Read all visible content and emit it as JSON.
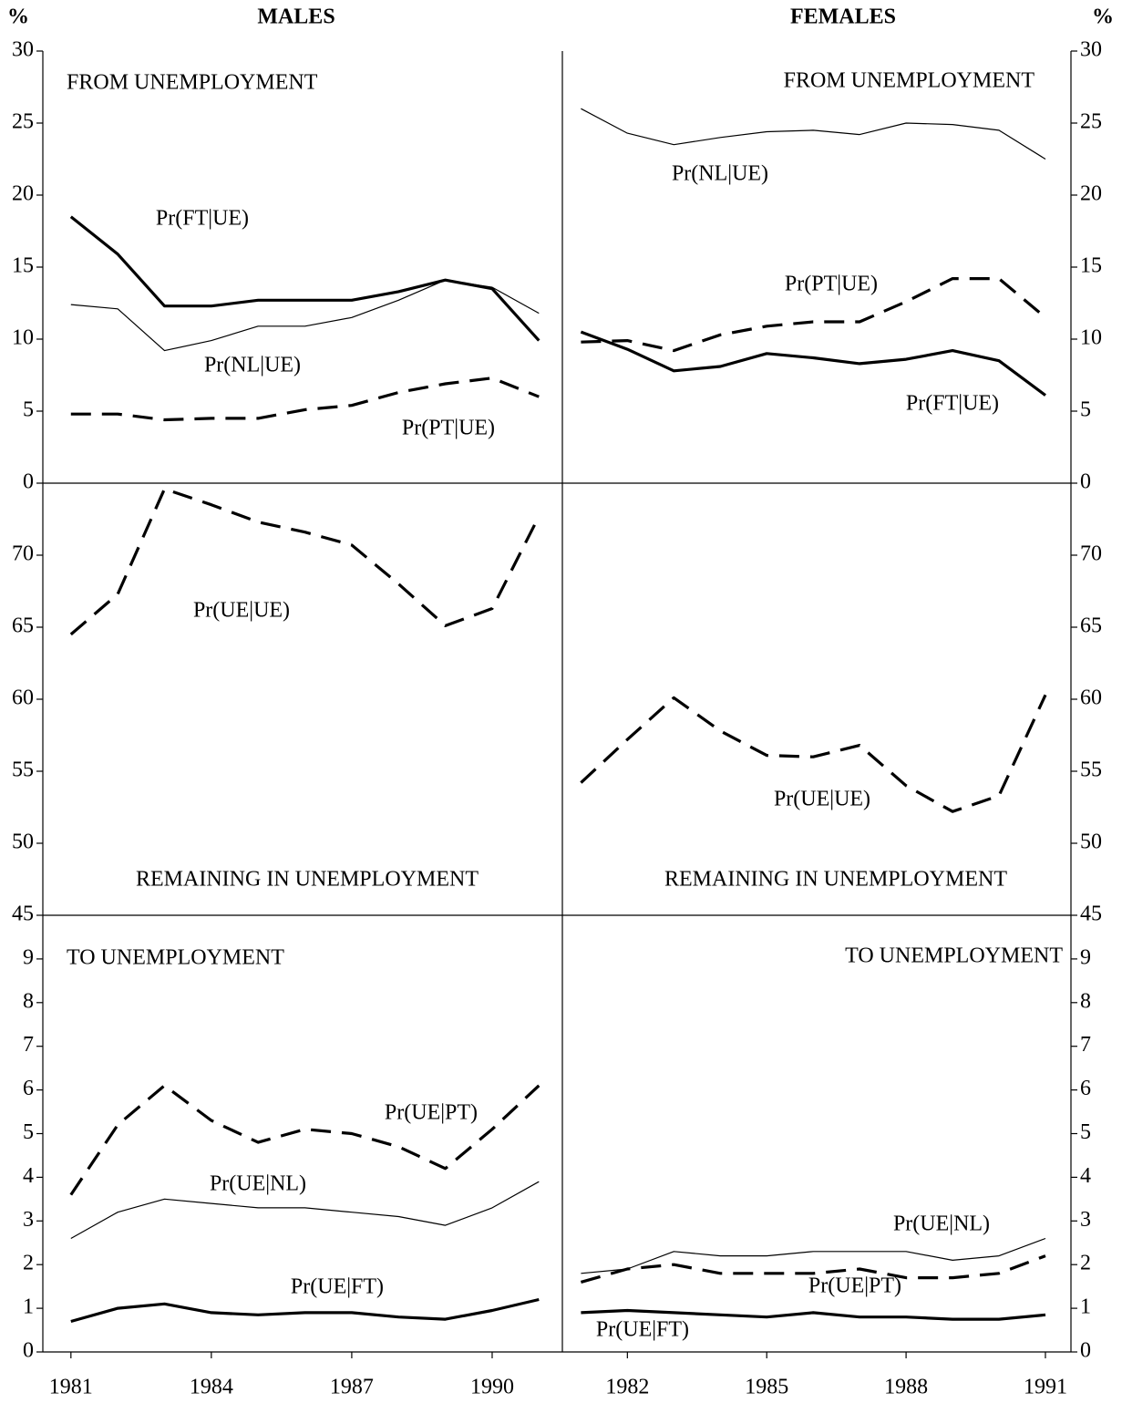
{
  "header": {
    "unit": "%",
    "left": "MALES",
    "right": "FEMALES"
  },
  "chart_data": [
    {
      "type": "line",
      "title": "FROM UNEMPLOYMENT",
      "x": [
        1981,
        1982,
        1983,
        1984,
        1985,
        1986,
        1987,
        1988,
        1989,
        1990,
        1991
      ],
      "xlim": [
        1980.4,
        1991.5
      ],
      "ylim": [
        0,
        30
      ],
      "yticks": [
        0,
        5,
        10,
        15,
        20,
        25,
        30
      ],
      "series": [
        {
          "name": "Pr(FT|UE)",
          "color": "#000",
          "style": "thick",
          "values": [
            18.5,
            15.9,
            12.3,
            12.3,
            12.7,
            12.7,
            12.7,
            13.3,
            14.1,
            13.5,
            9.9
          ]
        },
        {
          "name": "Pr(NL|UE)",
          "color": "#000",
          "style": "thin",
          "values": [
            12.4,
            12.1,
            9.2,
            9.9,
            10.9,
            10.9,
            11.5,
            12.7,
            14.1,
            13.6,
            11.8
          ]
        },
        {
          "name": "Pr(PT|UE)",
          "color": "#000",
          "style": "dashed",
          "values": [
            4.8,
            4.8,
            4.4,
            4.5,
            4.5,
            5.1,
            5.4,
            6.3,
            6.9,
            7.3,
            6.0
          ]
        }
      ]
    },
    {
      "type": "line",
      "title": "FROM UNEMPLOYMENT",
      "x": [
        1981,
        1982,
        1983,
        1984,
        1985,
        1986,
        1987,
        1988,
        1989,
        1990,
        1991
      ],
      "xlim": [
        1980.6,
        1991.55
      ],
      "ylim": [
        0,
        30
      ],
      "yticks": [
        0,
        5,
        10,
        15,
        20,
        25,
        30
      ],
      "series": [
        {
          "name": "Pr(NL|UE)",
          "color": "#000",
          "style": "thin",
          "values": [
            26.0,
            24.3,
            23.5,
            24.0,
            24.4,
            24.5,
            24.2,
            25.0,
            24.9,
            24.5,
            22.5
          ]
        },
        {
          "name": "Pr(PT|UE)",
          "color": "#000",
          "style": "dashed",
          "values": [
            9.8,
            9.9,
            9.2,
            10.3,
            10.9,
            11.2,
            11.2,
            12.6,
            14.2,
            14.2,
            11.5
          ]
        },
        {
          "name": "Pr(FT|UE)",
          "color": "#000",
          "style": "thick",
          "values": [
            10.5,
            9.3,
            7.8,
            8.1,
            9.0,
            8.7,
            8.3,
            8.6,
            9.2,
            8.5,
            6.1
          ]
        }
      ]
    },
    {
      "type": "line",
      "title": "REMAINING IN UNEMPLOYMENT",
      "x": [
        1981,
        1982,
        1983,
        1984,
        1985,
        1986,
        1987,
        1988,
        1989,
        1990,
        1991
      ],
      "xlim": [
        1980.4,
        1991.5
      ],
      "ylim": [
        45,
        75
      ],
      "yticks": [
        45,
        50,
        55,
        60,
        65,
        70
      ],
      "series": [
        {
          "name": "Pr(UE|UE)",
          "color": "#000",
          "style": "dashed",
          "values": [
            64.5,
            67.3,
            74.6,
            73.5,
            72.3,
            71.6,
            70.7,
            68.0,
            65.1,
            66.3,
            72.7
          ]
        }
      ]
    },
    {
      "type": "line",
      "title": "REMAINING IN UNEMPLOYMENT",
      "x": [
        1981,
        1982,
        1983,
        1984,
        1985,
        1986,
        1987,
        1988,
        1989,
        1990,
        1991
      ],
      "xlim": [
        1980.6,
        1991.55
      ],
      "ylim": [
        45,
        75
      ],
      "yticks": [
        45,
        50,
        55,
        60,
        65,
        70
      ],
      "series": [
        {
          "name": "Pr(UE|UE)",
          "color": "#000",
          "style": "dashed",
          "values": [
            54.2,
            57.2,
            60.1,
            57.8,
            56.1,
            56.0,
            56.8,
            54.0,
            52.2,
            53.3,
            60.3
          ]
        }
      ]
    },
    {
      "type": "line",
      "title": "TO UNEMPLOYMENT",
      "x": [
        1981,
        1982,
        1983,
        1984,
        1985,
        1986,
        1987,
        1988,
        1989,
        1990,
        1991
      ],
      "xlim": [
        1980.4,
        1991.5
      ],
      "ylim": [
        0,
        10
      ],
      "yticks": [
        0,
        1,
        2,
        3,
        4,
        5,
        6,
        7,
        8,
        9
      ],
      "xticks": [
        1981,
        1984,
        1987,
        1990
      ],
      "series": [
        {
          "name": "Pr(UE|PT)",
          "color": "#000",
          "style": "dashed",
          "values": [
            3.6,
            5.2,
            6.1,
            5.3,
            4.8,
            5.1,
            5.0,
            4.7,
            4.2,
            5.1,
            6.1
          ]
        },
        {
          "name": "Pr(UE|NL)",
          "color": "#000",
          "style": "thin",
          "values": [
            2.6,
            3.2,
            3.5,
            3.4,
            3.3,
            3.3,
            3.2,
            3.1,
            2.9,
            3.3,
            3.9
          ]
        },
        {
          "name": "Pr(UE|FT)",
          "color": "#000",
          "style": "thick",
          "values": [
            0.7,
            1.0,
            1.1,
            0.9,
            0.85,
            0.9,
            0.9,
            0.8,
            0.75,
            0.95,
            1.2
          ]
        }
      ]
    },
    {
      "type": "line",
      "title": "TO UNEMPLOYMENT",
      "x": [
        1981,
        1982,
        1983,
        1984,
        1985,
        1986,
        1987,
        1988,
        1989,
        1990,
        1991
      ],
      "xlim": [
        1980.6,
        1991.55
      ],
      "ylim": [
        0,
        10
      ],
      "yticks": [
        0,
        1,
        2,
        3,
        4,
        5,
        6,
        7,
        8,
        9
      ],
      "xticks": [
        1982,
        1985,
        1988,
        1991
      ],
      "series": [
        {
          "name": "Pr(UE|NL)",
          "color": "#000",
          "style": "thin",
          "values": [
            1.8,
            1.9,
            2.3,
            2.2,
            2.2,
            2.3,
            2.3,
            2.3,
            2.1,
            2.2,
            2.6
          ]
        },
        {
          "name": "Pr(UE|PT)",
          "color": "#000",
          "style": "dashed",
          "values": [
            1.6,
            1.9,
            2.0,
            1.8,
            1.8,
            1.8,
            1.9,
            1.7,
            1.7,
            1.8,
            2.2
          ]
        },
        {
          "name": "Pr(UE|FT)",
          "color": "#000",
          "style": "thick",
          "values": [
            0.9,
            0.95,
            0.9,
            0.85,
            0.8,
            0.9,
            0.8,
            0.8,
            0.75,
            0.75,
            0.85
          ]
        }
      ]
    }
  ]
}
